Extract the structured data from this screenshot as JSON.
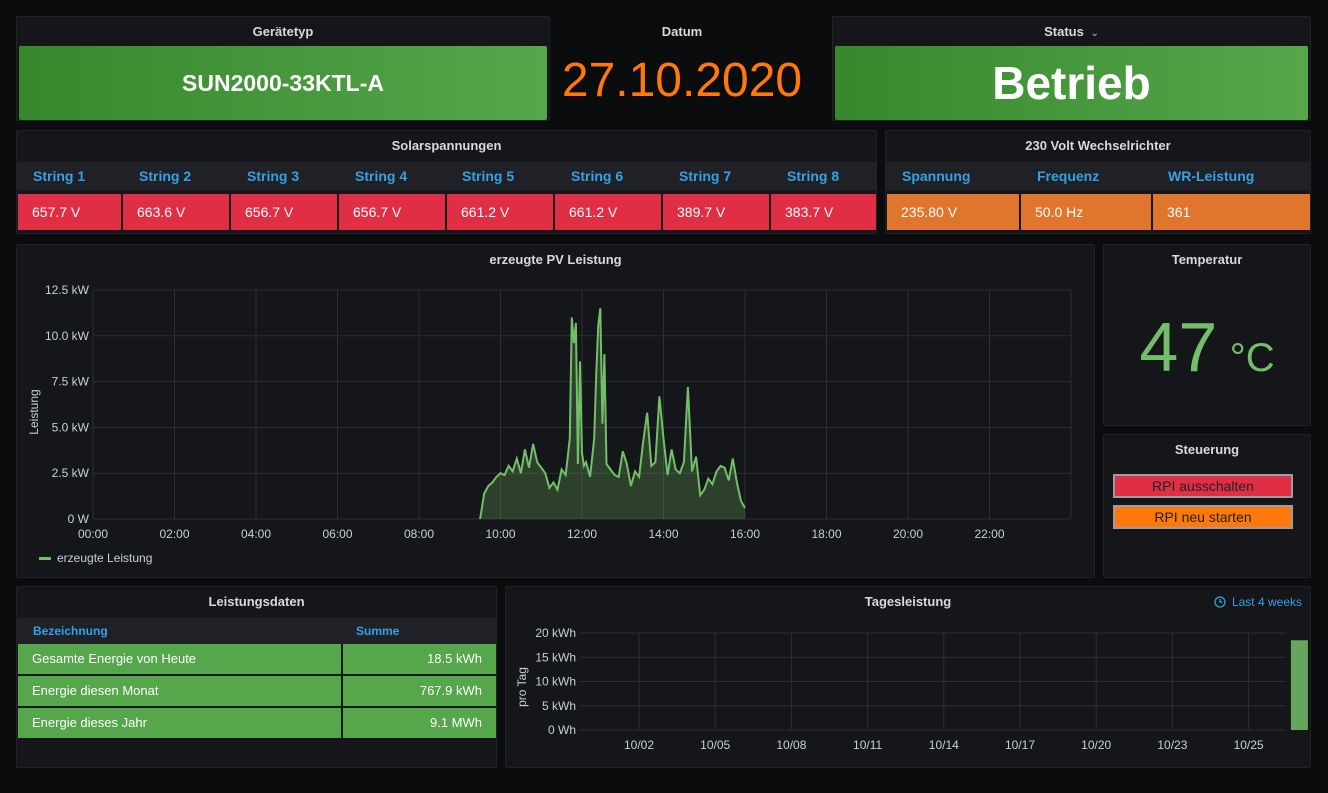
{
  "geraetetyp": {
    "title": "Gerätetyp",
    "value": "SUN2000-33KTL-A"
  },
  "datum": {
    "title": "Datum",
    "value": "27.10.2020",
    "color": "#ff780a"
  },
  "status": {
    "title": "Status",
    "chevron": "chevron-down-icon",
    "value": "Betrieb"
  },
  "solar": {
    "title": "Solarspannungen",
    "headers": [
      "String 1",
      "String 2",
      "String 3",
      "String 4",
      "String 5",
      "String 6",
      "String 7",
      "String 8"
    ],
    "values": [
      "657.7 V",
      "663.6 V",
      "656.7 V",
      "656.7 V",
      "661.2 V",
      "661.2 V",
      "389.7 V",
      "383.7 V"
    ]
  },
  "inverter": {
    "title": "230 Volt Wechselrichter",
    "headers": [
      "Spannung",
      "Frequenz",
      "WR-Leistung"
    ],
    "values": [
      "235.80 V",
      "50.0 Hz",
      "361"
    ]
  },
  "temperature": {
    "title": "Temperatur",
    "value": "47",
    "unit": "°C",
    "color": "#73bf69"
  },
  "control": {
    "title": "Steuerung",
    "shutdown_label": "RPI ausschalten",
    "restart_label": "RPI neu starten"
  },
  "leistungsdaten": {
    "title": "Leistungsdaten",
    "headers": [
      "Bezeichnung",
      "Summe"
    ],
    "rows": [
      {
        "label": "Gesamte Energie von Heute",
        "value": "18.5 kWh"
      },
      {
        "label": "Energie diesen Monat",
        "value": "767.9 kWh"
      },
      {
        "label": "Energie dieses Jahr",
        "value": "9.1 MWh"
      }
    ]
  },
  "tagesleistung": {
    "title": "Tagesleistung",
    "time_range": "Last 4 weeks",
    "clock_icon": "clock-icon"
  },
  "chart_data": [
    {
      "type": "area",
      "title": "erzeugte PV Leistung",
      "ylabel": "Leistung",
      "xlabel": "",
      "x_tick_labels": [
        "00:00",
        "02:00",
        "04:00",
        "06:00",
        "08:00",
        "10:00",
        "12:00",
        "14:00",
        "16:00",
        "18:00",
        "20:00",
        "22:00"
      ],
      "y_tick_labels": [
        "0 W",
        "2.5 kW",
        "5.0 kW",
        "7.5 kW",
        "10.0 kW",
        "12.5 kW"
      ],
      "xlim_hours": [
        0,
        24
      ],
      "ylim_kw": [
        0,
        12.5
      ],
      "grid": true,
      "legend": "bottom-left",
      "series": [
        {
          "name": "erzeugte Leistung",
          "color": "#73bf69",
          "x_hours": [
            9.5,
            9.6,
            9.7,
            9.8,
            9.9,
            10.0,
            10.1,
            10.2,
            10.3,
            10.4,
            10.5,
            10.6,
            10.7,
            10.8,
            10.9,
            11.0,
            11.1,
            11.2,
            11.3,
            11.4,
            11.5,
            11.6,
            11.7,
            11.75,
            11.8,
            11.85,
            11.9,
            11.95,
            12.0,
            12.05,
            12.1,
            12.2,
            12.3,
            12.35,
            12.4,
            12.45,
            12.5,
            12.55,
            12.6,
            12.7,
            12.8,
            12.9,
            13.0,
            13.1,
            13.2,
            13.3,
            13.4,
            13.5,
            13.6,
            13.7,
            13.8,
            13.9,
            14.0,
            14.1,
            14.2,
            14.3,
            14.4,
            14.5,
            14.6,
            14.7,
            14.8,
            14.9,
            15.0,
            15.1,
            15.2,
            15.3,
            15.4,
            15.5,
            15.6,
            15.7,
            15.8,
            15.9,
            16.0
          ],
          "y_kw": [
            0,
            1.4,
            1.8,
            2.0,
            2.3,
            2.5,
            2.4,
            2.9,
            2.6,
            3.3,
            2.5,
            3.8,
            2.8,
            4.1,
            3.1,
            2.8,
            2.5,
            1.7,
            2.0,
            1.6,
            2.7,
            2.4,
            4.4,
            11.0,
            9.6,
            10.7,
            3.0,
            8.6,
            3.6,
            2.9,
            3.1,
            2.3,
            4.4,
            8.0,
            10.6,
            11.5,
            5.2,
            9.0,
            3.0,
            2.7,
            2.4,
            2.3,
            3.7,
            3.0,
            1.8,
            2.6,
            2.3,
            4.2,
            5.8,
            2.9,
            3.1,
            6.7,
            4.4,
            2.4,
            3.8,
            2.7,
            2.5,
            3.1,
            7.2,
            2.6,
            3.4,
            1.3,
            1.6,
            2.2,
            1.9,
            2.6,
            2.9,
            2.8,
            2.1,
            3.3,
            2.0,
            1.0,
            0.6
          ]
        }
      ]
    },
    {
      "type": "bar",
      "title": "Tagesleistung",
      "ylabel": "pro Tag",
      "x_tick_labels": [
        "10/02",
        "10/05",
        "10/08",
        "10/11",
        "10/14",
        "10/17",
        "10/20",
        "10/23",
        "10/25"
      ],
      "y_tick_labels": [
        "0 Wh",
        "5 kWh",
        "10 kWh",
        "15 kWh",
        "20 kWh"
      ],
      "ylim_kwh": [
        0,
        20
      ],
      "grid": true,
      "color": "#73bf69",
      "categories": [
        "10/27"
      ],
      "values": [
        18.5
      ]
    }
  ]
}
